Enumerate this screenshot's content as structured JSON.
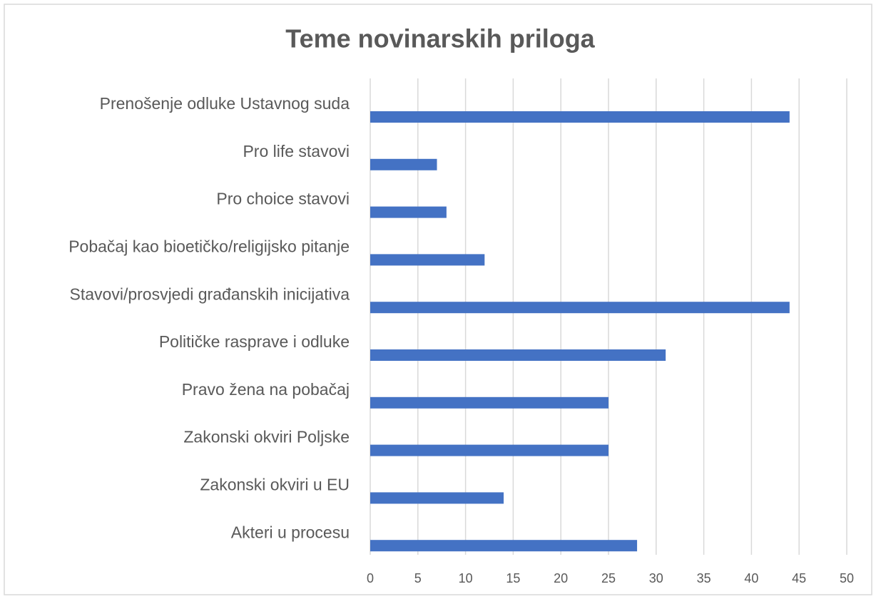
{
  "chart_data": {
    "type": "bar",
    "orientation": "horizontal",
    "title": "Teme novinarskih priloga",
    "categories": [
      "Prenošenje odluke Ustavnog suda",
      "Pro life stavovi",
      "Pro choice stavovi",
      "Pobačaj kao bioetičko/religijsko pitanje",
      "Stavovi/prosvjedi građanskih inicijativa",
      "Političke rasprave i odluke",
      "Pravo žena na pobačaj",
      "Zakonski okviri Poljske",
      "Zakonski okviri u EU",
      "Akteri u procesu"
    ],
    "values": [
      44,
      7,
      8,
      12,
      44,
      31,
      25,
      25,
      14,
      28
    ],
    "color": "#4472c4",
    "xlim": [
      0,
      50
    ],
    "xticks": [
      0,
      5,
      10,
      15,
      20,
      25,
      30,
      35,
      40,
      45,
      50
    ],
    "grid": true
  }
}
